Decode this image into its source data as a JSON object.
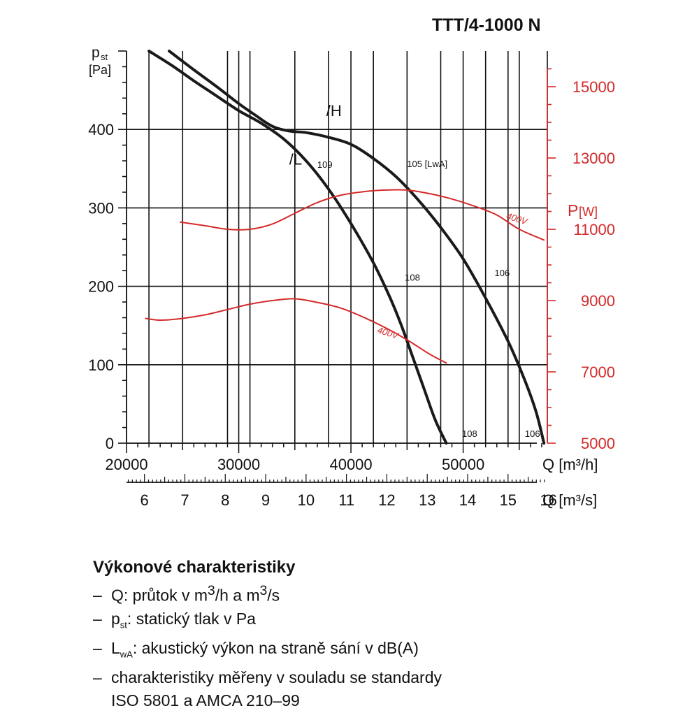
{
  "title": "TTT/4-1000 N",
  "chart_data": {
    "type": "line",
    "title": "TTT/4-1000 N",
    "x_axis": {
      "label": "Q [m³/h]",
      "ticks": [
        20000,
        30000,
        40000,
        50000
      ],
      "range": [
        20000,
        57500
      ],
      "grid_ticks": [
        22000,
        25000,
        29000,
        31000,
        35000,
        38000,
        42000,
        45000,
        48000,
        52000,
        54000,
        55000
      ]
    },
    "x_axis_secondary": {
      "label": "Q [m³/s]",
      "ticks": [
        6,
        7,
        8,
        9,
        10,
        11,
        12,
        13,
        14,
        15,
        16
      ]
    },
    "y_axis_left": {
      "label_main": "p",
      "label_sub": "st",
      "label_unit": "[Pa]",
      "ticks": [
        0,
        100,
        200,
        300,
        400
      ],
      "range": [
        0,
        500
      ]
    },
    "y_axis_right": {
      "label_main": "P",
      "label_unit": "[W]",
      "ticks": [
        5000,
        7000,
        9000,
        11000,
        13000,
        15000
      ],
      "range": [
        5000,
        16000
      ],
      "color": "#d42a2a"
    },
    "grid": true,
    "series": [
      {
        "name": "/H",
        "axis": "left",
        "color": "#1a1a1a",
        "x": [
          23800,
          26000,
          28000,
          30000,
          31500,
          33000,
          34500,
          36000,
          38000,
          40000,
          42000,
          44000,
          46000,
          48000,
          50000,
          52000,
          54000,
          55500,
          56500,
          57200
        ],
        "y": [
          500,
          476,
          455,
          433,
          418,
          404,
          398,
          396,
          390,
          381,
          363,
          340,
          310,
          275,
          235,
          185,
          130,
          80,
          40,
          0
        ]
      },
      {
        "name": "/L",
        "axis": "left",
        "color": "#1a1a1a",
        "x": [
          22000,
          24000,
          26000,
          28000,
          30000,
          32000,
          34000,
          36000,
          38000,
          40000,
          42000,
          43500,
          44500,
          45500,
          46500,
          47500,
          48500
        ],
        "y": [
          500,
          482,
          462,
          443,
          424,
          408,
          388,
          360,
          324,
          280,
          230,
          185,
          150,
          110,
          70,
          30,
          0
        ]
      },
      {
        "name": "400V",
        "axis": "right",
        "color": "#d42a2a",
        "x": [
          24800,
          27000,
          29000,
          31000,
          33000,
          35000,
          37000,
          39000,
          41000,
          43000,
          45000,
          47000,
          49000,
          51000,
          53000,
          55000,
          57200
        ],
        "y": [
          11200,
          11100,
          11000,
          11000,
          11150,
          11450,
          11750,
          11950,
          12050,
          12100,
          12100,
          12000,
          11850,
          11650,
          11400,
          11000,
          10700
        ]
      },
      {
        "name": "400V",
        "axis": "right",
        "color": "#d42a2a",
        "x": [
          21700,
          23000,
          25000,
          27000,
          29000,
          31000,
          33000,
          35000,
          37000,
          39000,
          41000,
          43000,
          45000,
          47000,
          48500
        ],
        "y": [
          8500,
          8450,
          8500,
          8600,
          8750,
          8900,
          9000,
          9050,
          8950,
          8800,
          8550,
          8250,
          7900,
          7500,
          7250
        ]
      }
    ],
    "annotations": [
      {
        "text": "/H",
        "x": 37800,
        "y": 417
      },
      {
        "text": "/L",
        "x": 34500,
        "y": 355
      },
      {
        "text": "109",
        "x": 37000,
        "y": 351
      },
      {
        "text": "105 [LwA]",
        "x": 45000,
        "y": 352
      },
      {
        "text": "108",
        "x": 44800,
        "y": 207
      },
      {
        "text": "106",
        "x": 52800,
        "y": 213
      },
      {
        "text": "108",
        "x": 49900,
        "y": 8
      },
      {
        "text": "106",
        "x": 55500,
        "y": 8
      },
      {
        "text": "400V",
        "x": 53800,
        "y": 11300
      },
      {
        "text": "400V",
        "x": 42300,
        "y": 8100
      }
    ]
  },
  "legend": {
    "title": "Výkonové charakteristiky",
    "items": [
      {
        "dash": "–",
        "before": "Q: průtok v m",
        "sup1": "3",
        "mid": "/h a m",
        "sup2": "3",
        "after": "/s"
      },
      {
        "dash": "–",
        "main": "p",
        "sub": "st",
        "text": ": statický tlak v Pa"
      },
      {
        "dash": "–",
        "main": "L",
        "sub": "wA",
        "text": ": akustický výkon na straně sání v dB(A)"
      },
      {
        "dash": "–",
        "text": "charakteristiky měřeny v souladu se standardy"
      },
      {
        "dash": "",
        "text": "ISO 5801 a AMCA 210–99"
      }
    ]
  }
}
